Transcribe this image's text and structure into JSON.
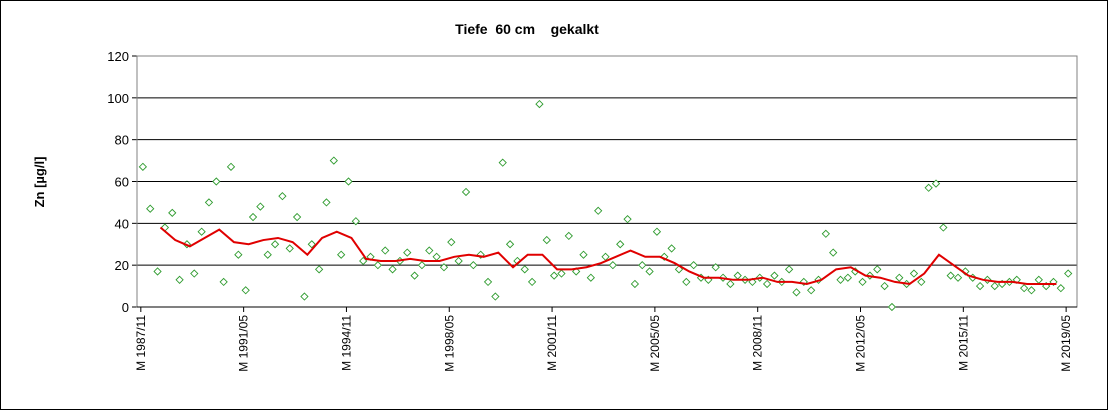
{
  "chart_data": {
    "type": "scatter",
    "title": "Tiefe  60 cm    gekalkt",
    "y_label": "Zn [µg/l]",
    "xlim": [
      1987.7,
      2019.7
    ],
    "xticks": [
      {
        "value": 1987.83,
        "label": "M 1987/11"
      },
      {
        "value": 1991.33,
        "label": "M 1991/05"
      },
      {
        "value": 1994.83,
        "label": "M 1994/11"
      },
      {
        "value": 1998.33,
        "label": "M 1998/05"
      },
      {
        "value": 2001.83,
        "label": "M 2001/11"
      },
      {
        "value": 2005.33,
        "label": "M 2005/05"
      },
      {
        "value": 2008.83,
        "label": "M 2008/11"
      },
      {
        "value": 2012.33,
        "label": "M 2012/05"
      },
      {
        "value": 2015.83,
        "label": "M 2015/11"
      },
      {
        "value": 2019.33,
        "label": "M 2019/05"
      }
    ],
    "ylim": [
      0,
      120
    ],
    "yticks": [
      0,
      20,
      40,
      60,
      80,
      100,
      120
    ],
    "grid": true,
    "series": [
      {
        "mode": "markers",
        "color": "#2e9b2e",
        "x": [
          1987.9,
          1988.15,
          1988.4,
          1988.65,
          1988.9,
          1989.15,
          1989.4,
          1989.65,
          1989.9,
          1990.15,
          1990.4,
          1990.65,
          1990.9,
          1991.15,
          1991.4,
          1991.65,
          1991.9,
          1992.15,
          1992.4,
          1992.65,
          1992.9,
          1993.15,
          1993.4,
          1993.65,
          1993.9,
          1994.15,
          1994.4,
          1994.65,
          1994.9,
          1995.15,
          1995.4,
          1995.65,
          1995.9,
          1996.15,
          1996.4,
          1996.65,
          1996.9,
          1997.15,
          1997.4,
          1997.65,
          1997.9,
          1998.15,
          1998.4,
          1998.65,
          1998.9,
          1999.15,
          1999.4,
          1999.65,
          1999.9,
          2000.15,
          2000.4,
          2000.65,
          2000.9,
          2001.15,
          2001.4,
          2001.65,
          2001.9,
          2002.15,
          2002.4,
          2002.65,
          2002.9,
          2003.15,
          2003.4,
          2003.65,
          2003.9,
          2004.15,
          2004.4,
          2004.65,
          2004.9,
          2005.15,
          2005.4,
          2005.65,
          2005.9,
          2006.15,
          2006.4,
          2006.65,
          2006.9,
          2007.15,
          2007.4,
          2007.65,
          2007.9,
          2008.15,
          2008.4,
          2008.65,
          2008.9,
          2009.15,
          2009.4,
          2009.65,
          2009.9,
          2010.15,
          2010.4,
          2010.65,
          2010.9,
          2011.15,
          2011.4,
          2011.65,
          2011.9,
          2012.15,
          2012.4,
          2012.65,
          2012.9,
          2013.15,
          2013.4,
          2013.65,
          2013.9,
          2014.15,
          2014.4,
          2014.65,
          2014.9,
          2015.15,
          2015.4,
          2015.65,
          2015.9,
          2016.15,
          2016.4,
          2016.65,
          2016.9,
          2017.15,
          2017.4,
          2017.65,
          2017.9,
          2018.15,
          2018.4,
          2018.65,
          2018.9,
          2019.15,
          2019.4
        ],
        "values": [
          67,
          47,
          17,
          38,
          45,
          13,
          30,
          16,
          36,
          50,
          60,
          12,
          67,
          25,
          8,
          43,
          48,
          25,
          30,
          53,
          28,
          43,
          5,
          30,
          18,
          50,
          70,
          25,
          60,
          41,
          22,
          24,
          20,
          27,
          18,
          22,
          26,
          15,
          20,
          27,
          24,
          19,
          31,
          22,
          55,
          20,
          25,
          12,
          5,
          69,
          30,
          22,
          18,
          12,
          97,
          32,
          15,
          16,
          34,
          17,
          25,
          14,
          46,
          24,
          20,
          30,
          42,
          11,
          20,
          17,
          36,
          24,
          28,
          18,
          12,
          20,
          14,
          13,
          19,
          14,
          11,
          15,
          13,
          12,
          14,
          11,
          15,
          12,
          18,
          7,
          12,
          8,
          13,
          35,
          26,
          13,
          14,
          17,
          12,
          15,
          18,
          10,
          0,
          14,
          11,
          16,
          12,
          57,
          59,
          38,
          15,
          14,
          17,
          14,
          10,
          13,
          10,
          11,
          12,
          13,
          9,
          8,
          13,
          10,
          12,
          9,
          16
        ]
      },
      {
        "mode": "line",
        "color": "#e00000",
        "x": [
          1988.5,
          1989,
          1989.5,
          1990,
          1990.5,
          1991,
          1991.5,
          1992,
          1992.5,
          1993,
          1993.5,
          1994,
          1994.5,
          1995,
          1995.5,
          1996,
          1996.5,
          1997,
          1997.5,
          1998,
          1998.5,
          1999,
          1999.5,
          2000,
          2000.5,
          2001,
          2001.5,
          2002,
          2002.5,
          2003,
          2003.5,
          2004,
          2004.5,
          2005,
          2005.5,
          2006,
          2006.5,
          2007,
          2007.5,
          2008,
          2008.5,
          2009,
          2009.5,
          2010,
          2010.5,
          2011,
          2011.5,
          2012,
          2012.5,
          2013,
          2013.5,
          2014,
          2014.5,
          2015,
          2015.5,
          2016,
          2016.5,
          2017,
          2017.5,
          2018,
          2018.5,
          2019
        ],
        "values": [
          38,
          32,
          29,
          33,
          37,
          31,
          30,
          32,
          33,
          31,
          25,
          33,
          36,
          33,
          23,
          22,
          22,
          23,
          22,
          22,
          24,
          25,
          24,
          26,
          19,
          25,
          25,
          18,
          18,
          19,
          21,
          24,
          27,
          24,
          24,
          21,
          17,
          14,
          14,
          13,
          13,
          14,
          12,
          12,
          11,
          13,
          18,
          19,
          15,
          14,
          12,
          11,
          16,
          25,
          20,
          15,
          13,
          12,
          12,
          11,
          11,
          11
        ]
      }
    ]
  }
}
